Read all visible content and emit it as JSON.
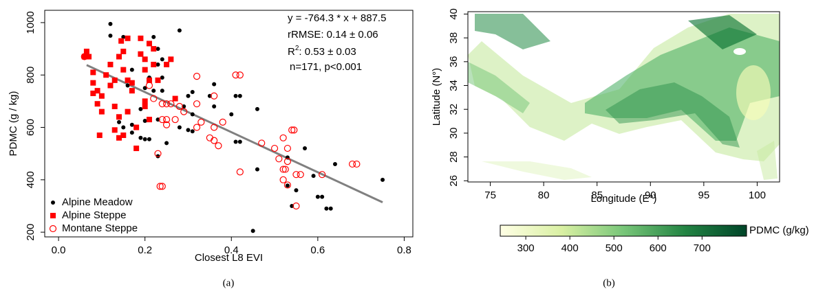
{
  "chart_data": [
    {
      "type": "scatter",
      "xlabel": "Closest L8 EVI",
      "ylabel": "PDMC (g / kg)",
      "caption": "(a)",
      "xlim": [
        -0.032,
        0.82
      ],
      "ylim": [
        182,
        1047
      ],
      "xticks": [
        {
          "value": 0,
          "label": "0.0"
        },
        0.2,
        0.4,
        0.6,
        0.8
      ],
      "yticks": [
        200,
        400,
        600,
        800,
        1000
      ],
      "legend": "bottom-left",
      "annotations": [
        "y = -764.3 * x + 887.5",
        "rRMSE: 0.14 ± 0.06",
        "n=171, p<0.001"
      ],
      "r2": {
        "base": "R",
        "sup": "2",
        "rest": ": 0.53 ± 0.03"
      },
      "fit": {
        "color": "#808080",
        "x": [
          0.065,
          0.75
        ],
        "y": [
          838,
          314
        ]
      },
      "series": [
        {
          "name": "Alpine Meadow",
          "color": "#000000",
          "marker": "dot",
          "x": [
            0.12,
            0.12,
            0.15,
            0.22,
            0.28,
            0.23,
            0.24,
            0.23,
            0.17,
            0.21,
            0.24,
            0.16,
            0.2,
            0.22,
            0.24,
            0.3,
            0.31,
            0.36,
            0.35,
            0.36,
            0.29,
            0.19,
            0.2,
            0.31,
            0.4,
            0.41,
            0.42,
            0.46,
            0.14,
            0.17,
            0.2,
            0.23,
            0.28,
            0.3,
            0.31,
            0.19,
            0.2,
            0.21,
            0.25,
            0.41,
            0.42,
            0.15,
            0.17,
            0.23,
            0.46,
            0.53,
            0.55,
            0.54,
            0.57,
            0.59,
            0.6,
            0.61,
            0.62,
            0.63,
            0.64,
            0.75,
            0.45,
            0.53
          ],
          "values": [
            995,
            950,
            945,
            945,
            970,
            900,
            860,
            840,
            820,
            790,
            790,
            760,
            750,
            740,
            740,
            720,
            735,
            765,
            720,
            680,
            680,
            670,
            690,
            650,
            650,
            720,
            720,
            670,
            620,
            610,
            625,
            630,
            600,
            590,
            585,
            560,
            555,
            555,
            540,
            545,
            545,
            600,
            580,
            490,
            440,
            378,
            360,
            300,
            520,
            415,
            335,
            335,
            290,
            290,
            460,
            400,
            205,
            485
          ]
        },
        {
          "name": "Alpine Steppe",
          "color": "#ff0000",
          "marker": "square",
          "x": [
            0.06,
            0.065,
            0.07,
            0.08,
            0.08,
            0.08,
            0.09,
            0.09,
            0.1,
            0.1,
            0.095,
            0.11,
            0.12,
            0.12,
            0.13,
            0.13,
            0.14,
            0.14,
            0.14,
            0.145,
            0.15,
            0.15,
            0.16,
            0.16,
            0.17,
            0.17,
            0.18,
            0.18,
            0.19,
            0.19,
            0.2,
            0.2,
            0.2,
            0.2,
            0.21,
            0.21,
            0.22,
            0.22,
            0.23,
            0.25,
            0.26,
            0.27,
            0.13,
            0.15,
            0.21,
            0.16
          ],
          "values": [
            870,
            890,
            870,
            810,
            770,
            730,
            740,
            690,
            660,
            720,
            570,
            800,
            760,
            840,
            780,
            680,
            640,
            560,
            870,
            930,
            890,
            820,
            940,
            780,
            770,
            740,
            520,
            600,
            940,
            880,
            860,
            820,
            700,
            680,
            920,
            780,
            900,
            840,
            780,
            840,
            860,
            710,
            590,
            570,
            630,
            660
          ]
        },
        {
          "name": "Montane Steppe",
          "color": "#ff0000",
          "marker": "ring",
          "x": [
            0.06,
            0.21,
            0.22,
            0.24,
            0.25,
            0.26,
            0.25,
            0.27,
            0.24,
            0.25,
            0.28,
            0.29,
            0.32,
            0.32,
            0.33,
            0.32,
            0.36,
            0.36,
            0.35,
            0.36,
            0.37,
            0.41,
            0.42,
            0.38,
            0.47,
            0.42,
            0.5,
            0.51,
            0.52,
            0.53,
            0.53,
            0.52,
            0.525,
            0.52,
            0.53,
            0.54,
            0.545,
            0.55,
            0.56,
            0.55,
            0.61,
            0.68,
            0.69,
            0.23,
            0.235,
            0.24
          ],
          "values": [
            870,
            760,
            710,
            690,
            690,
            690,
            630,
            630,
            630,
            610,
            680,
            660,
            690,
            795,
            620,
            600,
            720,
            600,
            560,
            550,
            530,
            800,
            800,
            620,
            540,
            430,
            520,
            480,
            560,
            520,
            470,
            440,
            440,
            400,
            380,
            590,
            590,
            420,
            420,
            300,
            420,
            460,
            460,
            500,
            375,
            375
          ]
        }
      ]
    },
    {
      "type": "map",
      "xlabel": "Longitude (E°)",
      "ylabel": "Latitude (N°)",
      "caption": "(b)",
      "xlim": [
        72.9,
        102.1
      ],
      "ylim": [
        25.9,
        40.2
      ],
      "xticks": [
        75,
        80,
        85,
        90,
        95,
        100
      ],
      "yticks": [
        26,
        28,
        30,
        32,
        34,
        36,
        38,
        40
      ],
      "colorbar": {
        "label": "PDMC (g/kg)",
        "lim": [
          242,
          801
        ],
        "ticks": [
          300,
          400,
          500,
          600,
          700
        ],
        "colors": [
          "#ffffe5",
          "#d9f0a3",
          "#78c679",
          "#238443",
          "#004529"
        ]
      }
    }
  ]
}
